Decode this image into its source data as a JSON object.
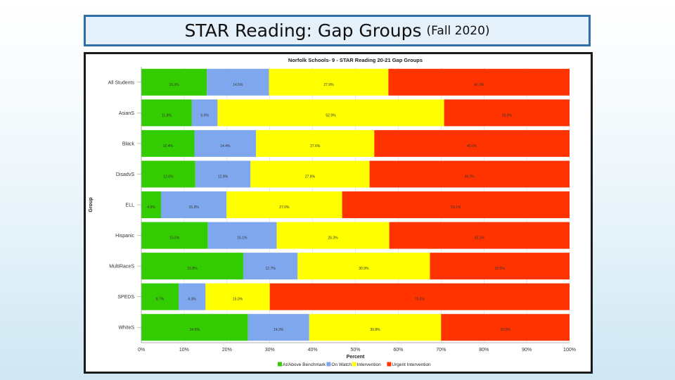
{
  "slide": {
    "title_main": "STAR Reading: Gap Groups",
    "title_suffix": "(Fall 2020)"
  },
  "chart_data": {
    "type": "bar",
    "orientation": "horizontal",
    "stacked": "percent",
    "title": "Norfolk Schools- 9 - STAR Reading 20-21 Gap Groups",
    "xlabel": "Percent",
    "ylabel": "Group",
    "xlim": [
      0,
      100
    ],
    "x_ticks": [
      "0%",
      "10%",
      "20%",
      "30%",
      "40%",
      "50%",
      "60%",
      "70%",
      "80%",
      "90%",
      "100%"
    ],
    "grid": true,
    "legend_position": "bottom",
    "categories": [
      "All Students",
      "AsianS",
      "Black",
      "DisadvS",
      "ELL",
      "Hispanic",
      "MultiRaceS",
      "SPEDS",
      "WhiteS"
    ],
    "series": [
      {
        "name": "At/Above Benchmark",
        "color": "#33cc00",
        "values": [
          15.3,
          11.8,
          12.4,
          12.6,
          4.6,
          15.5,
          23.8,
          8.7,
          24.9
        ]
      },
      {
        "name": "On Watch",
        "color": "#7fa7ee",
        "values": [
          14.5,
          6.0,
          14.4,
          12.9,
          15.3,
          16.1,
          12.7,
          6.3,
          14.3
        ]
      },
      {
        "name": "Intervention",
        "color": "#ffff00",
        "values": [
          27.9,
          52.9,
          27.6,
          27.8,
          27.0,
          26.3,
          30.9,
          15.0,
          30.8
        ]
      },
      {
        "name": "Urgent Intervention",
        "color": "#ff3300",
        "values": [
          42.3,
          29.3,
          45.6,
          46.7,
          53.1,
          42.1,
          32.6,
          70.0,
          30.0
        ]
      }
    ]
  }
}
